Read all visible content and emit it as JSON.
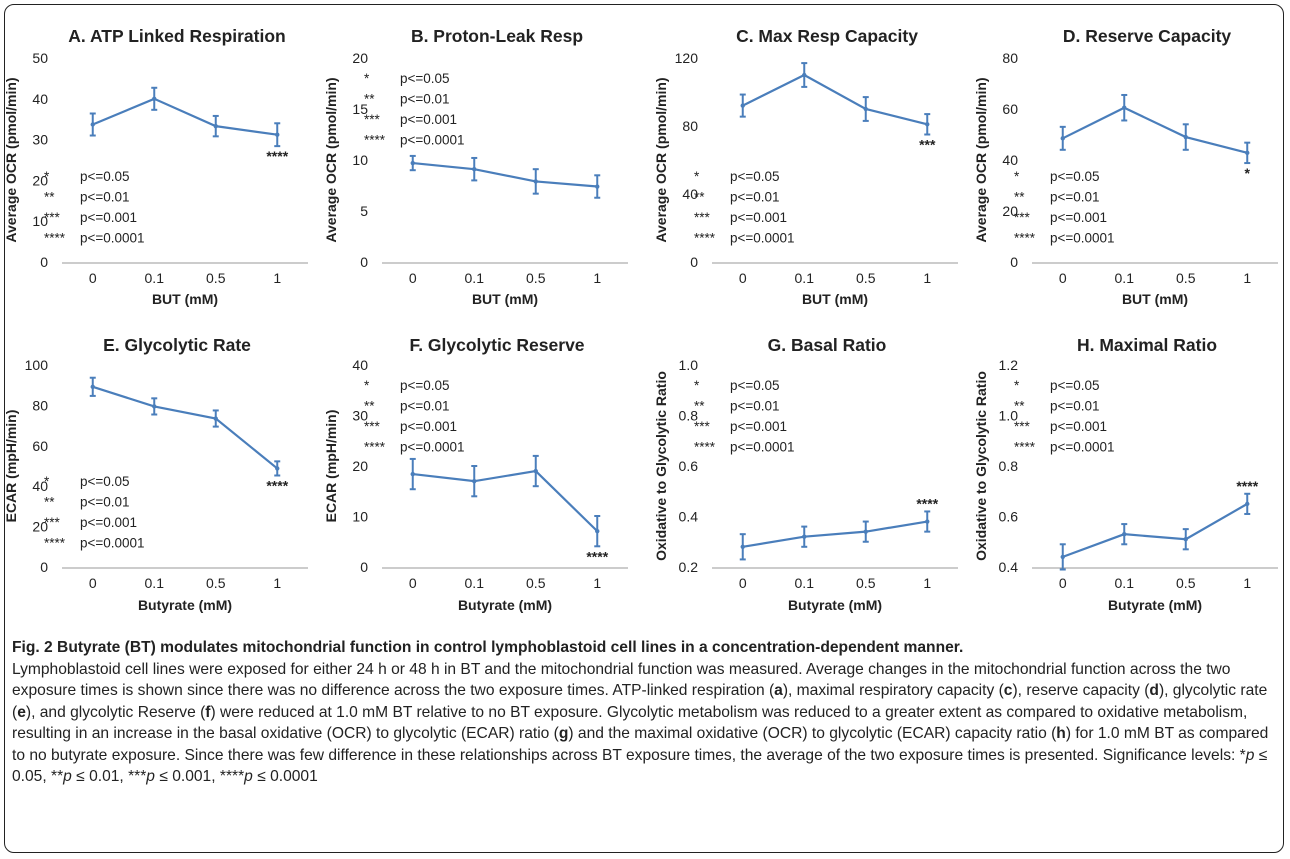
{
  "figure": {
    "caption_title": "Fig. 2 Butyrate (BT) modulates mitochondrial function in control lymphoblastoid cell lines in a concentration-dependent manner.",
    "caption_body_parts": [
      "Lymphoblastoid cell lines were exposed for either 24 h or 48 h in BT and the mitochondrial function was measured. Average changes in the mitochondrial function across the two exposure times is shown since there was no difference across the two exposure times. ATP-linked respiration (",
      "a",
      "), maximal respiratory capacity (",
      "c",
      "), reserve capacity (",
      "d",
      "), glycolytic rate (",
      "e",
      "), and glycolytic Reserve (",
      "f",
      ") were reduced at 1.0 mM BT relative to no BT exposure. Glycolytic metabolism was reduced to a greater extent as compared to oxidative metabolism, resulting in an increase in the basal oxidative (OCR) to glycolytic (ECAR) ratio (",
      "g",
      ") and the maximal oxidative (OCR) to glycolytic (ECAR) capacity ratio (",
      "h",
      ") for 1.0 mM BT as compared to no butyrate exposure. Since there was few difference in these relationships across BT exposure times, the average of the two exposure times is presented. Significance levels: *",
      "p",
      " ≤ 0.05, **",
      "p",
      " ≤ 0.01, ***",
      "p",
      " ≤ 0.001, ****",
      "p",
      " ≤ 0.0001"
    ]
  },
  "style": {
    "series_color": "#4a7ebb",
    "text_color": "#222222"
  },
  "chart_data": [
    {
      "type": "line",
      "title": "A. ATP Linked Respiration",
      "categories": [
        "0",
        "0.1",
        "0.5",
        "1"
      ],
      "xlabel": "BUT (mM)",
      "ylabel": "Average OCR (pmol/min)",
      "ylim": [
        0,
        50
      ],
      "yticks": [
        "0",
        "10",
        "20",
        "30",
        "40",
        "50"
      ],
      "values": [
        33.7,
        40.0,
        33.3,
        31.2
      ],
      "errors": [
        2.7,
        2.7,
        2.5,
        2.8
      ],
      "sig_marker": "****",
      "sig_index": 3,
      "legend": [
        [
          "*",
          "p<=0.05"
        ],
        [
          "**",
          "p<=0.01"
        ],
        [
          "***",
          "p<=0.001"
        ],
        [
          "****",
          "p<=0.0001"
        ]
      ]
    },
    {
      "type": "line",
      "title": "B. Proton-Leak Resp",
      "categories": [
        "0",
        "0.1",
        "0.5",
        "1"
      ],
      "xlabel": "BUT (mM)",
      "ylabel": "Average OCR (pmol/min)",
      "ylim": [
        0,
        20
      ],
      "yticks": [
        "0",
        "5",
        "10",
        "15",
        "20"
      ],
      "values": [
        9.7,
        9.1,
        7.9,
        7.4
      ],
      "errors": [
        0.7,
        1.1,
        1.2,
        1.1
      ],
      "sig_marker": "",
      "sig_index": 3,
      "legend": [
        [
          "*",
          "p<=0.05"
        ],
        [
          "**",
          "p<=0.01"
        ],
        [
          "***",
          "p<=0.001"
        ],
        [
          "****",
          "p<=0.0001"
        ]
      ]
    },
    {
      "type": "line",
      "title": "C. Max Resp Capacity",
      "categories": [
        "0",
        "0.1",
        "0.5",
        "1"
      ],
      "xlabel": "BUT (mM)",
      "ylabel": "Average OCR (pmol/min)",
      "ylim": [
        0,
        120
      ],
      "yticks": [
        "0",
        "40",
        "80",
        "120"
      ],
      "values": [
        92,
        110,
        90,
        81
      ],
      "errors": [
        6.5,
        7.0,
        7.0,
        6.0
      ],
      "sig_marker": "***",
      "sig_index": 3,
      "legend": [
        [
          "*",
          "p<=0.05"
        ],
        [
          "**",
          "p<=0.01"
        ],
        [
          "***",
          "p<=0.001"
        ],
        [
          "****",
          "p<=0.0001"
        ]
      ]
    },
    {
      "type": "line",
      "title": "D. Reserve Capacity",
      "categories": [
        "0",
        "0.1",
        "0.5",
        "1"
      ],
      "xlabel": "BUT (mM)",
      "ylabel": "Average OCR (pmol/min)",
      "ylim": [
        0,
        80
      ],
      "yticks": [
        "0",
        "20",
        "40",
        "60",
        "80"
      ],
      "values": [
        48.5,
        60.5,
        49.0,
        42.8
      ],
      "errors": [
        4.5,
        5.0,
        5.0,
        4.0
      ],
      "sig_marker": "*",
      "sig_index": 3,
      "legend": [
        [
          "*",
          "p<=0.05"
        ],
        [
          "**",
          "p<=0.01"
        ],
        [
          "***",
          "p<=0.001"
        ],
        [
          "****",
          "p<=0.0001"
        ]
      ]
    },
    {
      "type": "line",
      "title": "E. Glycolytic Rate",
      "categories": [
        "0",
        "0.1",
        "0.5",
        "1"
      ],
      "xlabel": "Butyrate (mM)",
      "ylabel": "ECAR (mpH/min)",
      "ylim": [
        0,
        100
      ],
      "yticks": [
        "0",
        "20",
        "40",
        "60",
        "80",
        "100"
      ],
      "values": [
        89.2,
        79.5,
        73.5,
        48.8
      ],
      "errors": [
        4.5,
        4.0,
        4.0,
        3.5
      ],
      "sig_marker": "****",
      "sig_index": 3,
      "legend": [
        [
          "*",
          "p<=0.05"
        ],
        [
          "**",
          "p<=0.01"
        ],
        [
          "***",
          "p<=0.001"
        ],
        [
          "****",
          "p<=0.0001"
        ]
      ]
    },
    {
      "type": "line",
      "title": "F. Glycolytic Reserve",
      "categories": [
        "0",
        "0.1",
        "0.5",
        "1"
      ],
      "xlabel": "Butyrate (mM)",
      "ylabel": "ECAR (mpH/min)",
      "ylim": [
        0,
        40
      ],
      "yticks": [
        "0",
        "10",
        "20",
        "30",
        "40"
      ],
      "values": [
        18.4,
        17.0,
        19.0,
        7.1
      ],
      "errors": [
        3.0,
        3.0,
        3.0,
        3.0
      ],
      "sig_marker": "****",
      "sig_index": 3,
      "legend": [
        [
          "*",
          "p<=0.05"
        ],
        [
          "**",
          "p<=0.01"
        ],
        [
          "***",
          "p<=0.001"
        ],
        [
          "****",
          "p<=0.0001"
        ]
      ]
    },
    {
      "type": "line",
      "title": "G. Basal Ratio",
      "categories": [
        "0",
        "0.1",
        "0.5",
        "1"
      ],
      "xlabel": "Butyrate (mM)",
      "ylabel": "Oxidative to Glycolytic Ratio",
      "ylim": [
        0.2,
        1.0
      ],
      "yticks": [
        "0.2",
        "0.4",
        "0.6",
        "0.8",
        "1.0"
      ],
      "values": [
        0.28,
        0.32,
        0.34,
        0.38
      ],
      "errors": [
        0.05,
        0.04,
        0.04,
        0.04
      ],
      "sig_marker": "****",
      "sig_index": 3,
      "legend": [
        [
          "*",
          "p<=0.05"
        ],
        [
          "**",
          "p<=0.01"
        ],
        [
          "***",
          "p<=0.001"
        ],
        [
          "****",
          "p<=0.0001"
        ]
      ]
    },
    {
      "type": "line",
      "title": "H. Maximal Ratio",
      "categories": [
        "0",
        "0.1",
        "0.5",
        "1"
      ],
      "xlabel": "Butyrate (mM)",
      "ylabel": "Oxidative to Glycolytic Ratio",
      "ylim": [
        0.4,
        1.2
      ],
      "yticks": [
        "0.4",
        "0.6",
        "0.8",
        "1.0",
        "1.2"
      ],
      "values": [
        0.44,
        0.53,
        0.51,
        0.65
      ],
      "errors": [
        0.05,
        0.04,
        0.04,
        0.04
      ],
      "sig_marker": "****",
      "sig_index": 3,
      "legend": [
        [
          "*",
          "p<=0.05"
        ],
        [
          "**",
          "p<=0.01"
        ],
        [
          "***",
          "p<=0.001"
        ],
        [
          "****",
          "p<=0.0001"
        ]
      ]
    }
  ]
}
